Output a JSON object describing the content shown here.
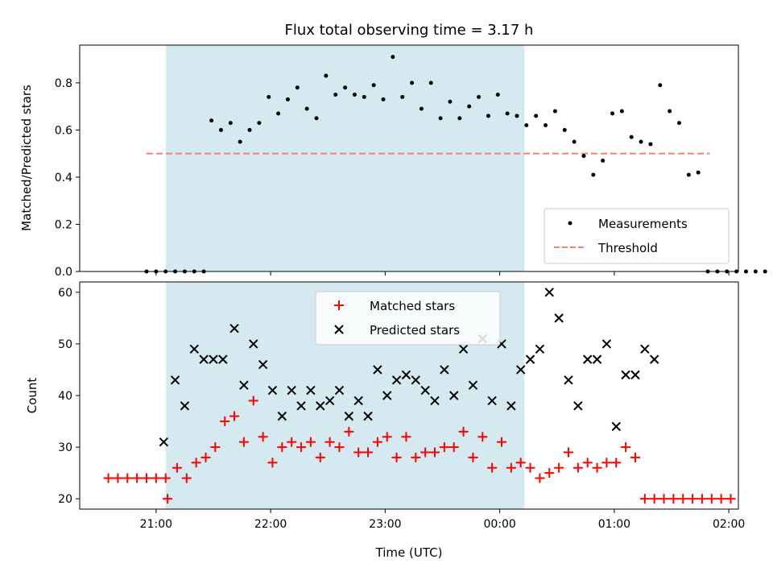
{
  "chart_data": [
    {
      "type": "scatter",
      "title": "Flux total observing time = 3.17 h",
      "ylabel": "Matched/Predicted stars",
      "xlabel": "",
      "xlim": [
        "20:20",
        "02:05"
      ],
      "ylim": [
        0,
        0.96
      ],
      "x_ticks": [
        "21:00",
        "22:00",
        "23:00",
        "00:00",
        "01:00",
        "02:00"
      ],
      "y_ticks": [
        "0.0",
        "0.2",
        "0.4",
        "0.6",
        "0.8"
      ],
      "highlight_span": [
        "21:05",
        "00:13"
      ],
      "highlight_color": "#d4eaf0",
      "legend": {
        "placement": "lower-right",
        "measurements_label": "Measurements",
        "threshold_label": "Threshold"
      },
      "threshold": {
        "value": 0.5,
        "x_range": [
          "20:55",
          "01:50"
        ],
        "color": "#f08080"
      },
      "series": [
        {
          "name": "Measurements",
          "color": "#000000",
          "points": [
            [
              "20:55",
              0
            ],
            [
              "21:00",
              0
            ],
            [
              "21:05",
              0
            ],
            [
              "21:10",
              0
            ],
            [
              "21:15",
              0
            ],
            [
              "21:20",
              0
            ],
            [
              "21:25",
              0
            ],
            [
              "21:29",
              0.64
            ],
            [
              "21:34",
              0.6
            ],
            [
              "21:39",
              0.63
            ],
            [
              "21:44",
              0.55
            ],
            [
              "21:49",
              0.6
            ],
            [
              "21:54",
              0.63
            ],
            [
              "21:59",
              0.74
            ],
            [
              "22:04",
              0.67
            ],
            [
              "22:09",
              0.73
            ],
            [
              "22:14",
              0.78
            ],
            [
              "22:19",
              0.69
            ],
            [
              "22:24",
              0.65
            ],
            [
              "22:29",
              0.83
            ],
            [
              "22:34",
              0.75
            ],
            [
              "22:39",
              0.78
            ],
            [
              "22:44",
              0.75
            ],
            [
              "22:49",
              0.74
            ],
            [
              "22:54",
              0.79
            ],
            [
              "22:59",
              0.73
            ],
            [
              "23:04",
              0.91
            ],
            [
              "23:09",
              0.74
            ],
            [
              "23:14",
              0.8
            ],
            [
              "23:19",
              0.69
            ],
            [
              "23:24",
              0.8
            ],
            [
              "23:29",
              0.65
            ],
            [
              "23:34",
              0.72
            ],
            [
              "23:39",
              0.65
            ],
            [
              "23:44",
              0.7
            ],
            [
              "23:49",
              0.74
            ],
            [
              "23:54",
              0.66
            ],
            [
              "23:59",
              0.75
            ],
            [
              "00:04",
              0.67
            ],
            [
              "00:09",
              0.66
            ],
            [
              "00:14",
              0.62
            ],
            [
              "00:19",
              0.66
            ],
            [
              "00:24",
              0.62
            ],
            [
              "00:29",
              0.68
            ],
            [
              "00:34",
              0.6
            ],
            [
              "00:39",
              0.55
            ],
            [
              "00:44",
              0.49
            ],
            [
              "00:49",
              0.41
            ],
            [
              "00:54",
              0.47
            ],
            [
              "00:59",
              0.67
            ],
            [
              "01:04",
              0.68
            ],
            [
              "01:09",
              0.57
            ],
            [
              "01:14",
              0.55
            ],
            [
              "01:19",
              0.54
            ],
            [
              "01:24",
              0.79
            ],
            [
              "01:29",
              0.68
            ],
            [
              "01:34",
              0.63
            ],
            [
              "01:39",
              0.41
            ],
            [
              "01:44",
              0.42
            ],
            [
              "01:49",
              0
            ],
            [
              "01:54",
              0
            ],
            [
              "01:59",
              0
            ],
            [
              "02:04",
              0
            ],
            [
              "02:09",
              0
            ],
            [
              "02:14",
              0
            ],
            [
              "02:19",
              0
            ]
          ]
        }
      ]
    },
    {
      "type": "scatter",
      "title": "",
      "xlabel": "Time (UTC)",
      "ylabel": "Count",
      "xlim": [
        "20:20",
        "02:05"
      ],
      "ylim": [
        18,
        62
      ],
      "x_ticks": [
        "21:00",
        "22:00",
        "23:00",
        "00:00",
        "01:00",
        "02:00"
      ],
      "y_ticks": [
        "20",
        "30",
        "40",
        "50",
        "60"
      ],
      "highlight_span": [
        "21:05",
        "00:13"
      ],
      "legend": {
        "placement": "upper-center",
        "matched_label": "Matched stars",
        "predicted_label": "Predicted stars"
      },
      "series": [
        {
          "name": "Matched stars",
          "marker": "+",
          "color": "#ff0000",
          "points": [
            [
              "20:35",
              24
            ],
            [
              "20:40",
              24
            ],
            [
              "20:45",
              24
            ],
            [
              "20:50",
              24
            ],
            [
              "20:55",
              24
            ],
            [
              "21:00",
              24
            ],
            [
              "21:05",
              24
            ],
            [
              "21:06",
              20
            ],
            [
              "21:11",
              26
            ],
            [
              "21:16",
              24
            ],
            [
              "21:21",
              27
            ],
            [
              "21:26",
              28
            ],
            [
              "21:31",
              30
            ],
            [
              "21:36",
              35
            ],
            [
              "21:41",
              36
            ],
            [
              "21:46",
              31
            ],
            [
              "21:51",
              39
            ],
            [
              "21:56",
              32
            ],
            [
              "22:01",
              27
            ],
            [
              "22:06",
              30
            ],
            [
              "22:11",
              31
            ],
            [
              "22:16",
              30
            ],
            [
              "22:21",
              31
            ],
            [
              "22:26",
              28
            ],
            [
              "22:31",
              31
            ],
            [
              "22:36",
              30
            ],
            [
              "22:41",
              33
            ],
            [
              "22:46",
              29
            ],
            [
              "22:51",
              29
            ],
            [
              "22:56",
              31
            ],
            [
              "23:01",
              32
            ],
            [
              "23:06",
              28
            ],
            [
              "23:11",
              32
            ],
            [
              "23:16",
              28
            ],
            [
              "23:21",
              29
            ],
            [
              "23:26",
              29
            ],
            [
              "23:31",
              30
            ],
            [
              "23:36",
              30
            ],
            [
              "23:41",
              33
            ],
            [
              "23:46",
              28
            ],
            [
              "23:51",
              32
            ],
            [
              "23:56",
              26
            ],
            [
              "00:01",
              31
            ],
            [
              "00:06",
              26
            ],
            [
              "00:11",
              27
            ],
            [
              "00:16",
              26
            ],
            [
              "00:21",
              24
            ],
            [
              "00:26",
              25
            ],
            [
              "00:31",
              26
            ],
            [
              "00:36",
              29
            ],
            [
              "00:41",
              26
            ],
            [
              "00:46",
              27
            ],
            [
              "00:51",
              26
            ],
            [
              "00:56",
              27
            ],
            [
              "01:01",
              27
            ],
            [
              "01:06",
              30
            ],
            [
              "01:11",
              28
            ],
            [
              "01:16",
              20
            ],
            [
              "01:21",
              20
            ],
            [
              "01:26",
              20
            ],
            [
              "01:31",
              20
            ],
            [
              "01:36",
              20
            ],
            [
              "01:41",
              20
            ],
            [
              "01:46",
              20
            ],
            [
              "01:51",
              20
            ],
            [
              "01:56",
              20
            ],
            [
              "02:01",
              20
            ]
          ]
        },
        {
          "name": "Predicted stars",
          "marker": "x",
          "color": "#000000",
          "points": [
            [
              "21:04",
              31
            ],
            [
              "21:10",
              43
            ],
            [
              "21:15",
              38
            ],
            [
              "21:20",
              49
            ],
            [
              "21:25",
              47
            ],
            [
              "21:30",
              47
            ],
            [
              "21:35",
              47
            ],
            [
              "21:41",
              53
            ],
            [
              "21:46",
              42
            ],
            [
              "21:51",
              50
            ],
            [
              "21:56",
              46
            ],
            [
              "22:01",
              41
            ],
            [
              "22:06",
              36
            ],
            [
              "22:11",
              41
            ],
            [
              "22:16",
              38
            ],
            [
              "22:21",
              41
            ],
            [
              "22:26",
              38
            ],
            [
              "22:31",
              39
            ],
            [
              "22:36",
              41
            ],
            [
              "22:41",
              36
            ],
            [
              "22:46",
              39
            ],
            [
              "22:51",
              36
            ],
            [
              "22:56",
              45
            ],
            [
              "23:01",
              40
            ],
            [
              "23:06",
              43
            ],
            [
              "23:11",
              44
            ],
            [
              "23:16",
              43
            ],
            [
              "23:21",
              41
            ],
            [
              "23:26",
              39
            ],
            [
              "23:31",
              45
            ],
            [
              "23:36",
              40
            ],
            [
              "23:41",
              49
            ],
            [
              "23:46",
              42
            ],
            [
              "23:51",
              51
            ],
            [
              "23:56",
              39
            ],
            [
              "00:01",
              50
            ],
            [
              "00:06",
              38
            ],
            [
              "00:11",
              45
            ],
            [
              "00:16",
              47
            ],
            [
              "00:21",
              49
            ],
            [
              "00:26",
              60
            ],
            [
              "00:31",
              55
            ],
            [
              "00:36",
              43
            ],
            [
              "00:41",
              38
            ],
            [
              "00:46",
              47
            ],
            [
              "00:51",
              47
            ],
            [
              "00:56",
              50
            ],
            [
              "01:01",
              34
            ],
            [
              "01:06",
              44
            ],
            [
              "01:11",
              44
            ],
            [
              "01:16",
              49
            ],
            [
              "01:21",
              47
            ]
          ]
        }
      ]
    }
  ]
}
